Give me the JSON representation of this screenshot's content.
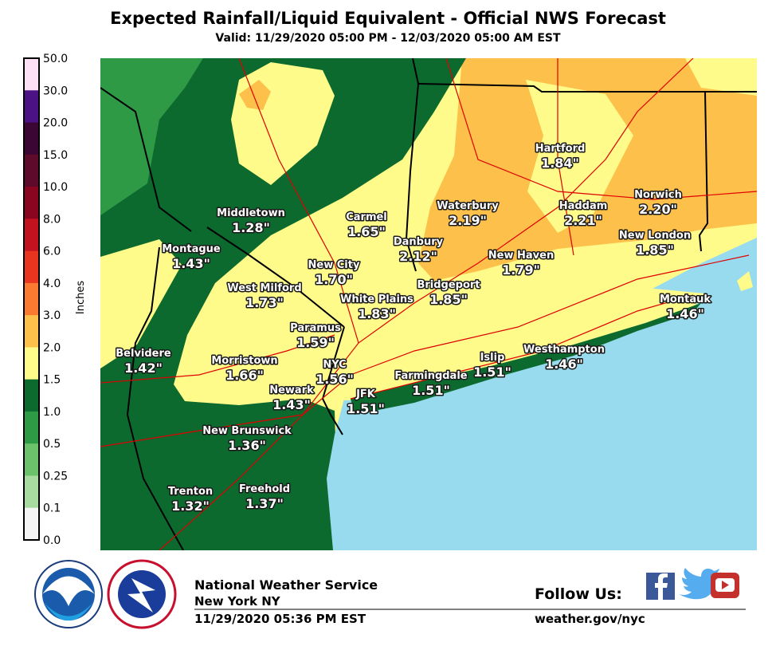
{
  "header": {
    "title": "Expected Rainfall/Liquid Equivalent - Official NWS Forecast",
    "subtitle": "Valid: 11/29/2020 05:00 PM - 12/03/2020 05:00 AM EST"
  },
  "legend": {
    "axis_label": "Inches",
    "labels": [
      "50.0",
      "30.0",
      "20.0",
      "15.0",
      "10.0",
      "8.0",
      "6.0",
      "4.0",
      "3.0",
      "2.0",
      "1.5",
      "1.0",
      "0.5",
      "0.25",
      "0.1",
      "0.0"
    ],
    "colors": [
      "#fde0f6",
      "#4b1285",
      "#3b0633",
      "#5e0a2a",
      "#8a0520",
      "#c2121f",
      "#e8351f",
      "#f97a30",
      "#fdc04a",
      "#fefb8a",
      "#0c6a2e",
      "#2f9a46",
      "#6cc26a",
      "#a8dba0",
      "#f5f5f5"
    ]
  },
  "cities": [
    {
      "name": "Middletown",
      "amount": "1.28\""
    },
    {
      "name": "Carmel",
      "amount": "1.65\""
    },
    {
      "name": "Waterbury",
      "amount": "2.19\""
    },
    {
      "name": "Hartford",
      "amount": "1.84\""
    },
    {
      "name": "Haddam",
      "amount": "2.21\""
    },
    {
      "name": "Norwich",
      "amount": "2.20\""
    },
    {
      "name": "Danbury",
      "amount": "2.12\""
    },
    {
      "name": "New London",
      "amount": "1.85\""
    },
    {
      "name": "Montague",
      "amount": "1.43\""
    },
    {
      "name": "New City",
      "amount": "1.70\""
    },
    {
      "name": "New Haven",
      "amount": "1.79\""
    },
    {
      "name": "West Milford",
      "amount": "1.73\""
    },
    {
      "name": "Bridgeport",
      "amount": "1.85\""
    },
    {
      "name": "White Plains",
      "amount": "1.83\""
    },
    {
      "name": "Montauk",
      "amount": "1.46\""
    },
    {
      "name": "Paramus",
      "amount": "1.59\""
    },
    {
      "name": "Belvidere",
      "amount": "1.42\""
    },
    {
      "name": "Morristown",
      "amount": "1.66\""
    },
    {
      "name": "NYC",
      "amount": "1.56\""
    },
    {
      "name": "Islip",
      "amount": "1.51\""
    },
    {
      "name": "Westhampton",
      "amount": "1.46\""
    },
    {
      "name": "Farmingdale",
      "amount": "1.51\""
    },
    {
      "name": "Newark",
      "amount": "1.43\""
    },
    {
      "name": "JFK",
      "amount": "1.51\""
    },
    {
      "name": "New Brunswick",
      "amount": "1.36\""
    },
    {
      "name": "Trenton",
      "amount": "1.32\""
    },
    {
      "name": "Freehold",
      "amount": "1.37\""
    }
  ],
  "footer": {
    "office": "National Weather Service",
    "location": "New York NY",
    "issued": "11/29/2020 05:36 PM EST",
    "follow": "Follow Us:",
    "url": "weather.gov/nyc"
  }
}
